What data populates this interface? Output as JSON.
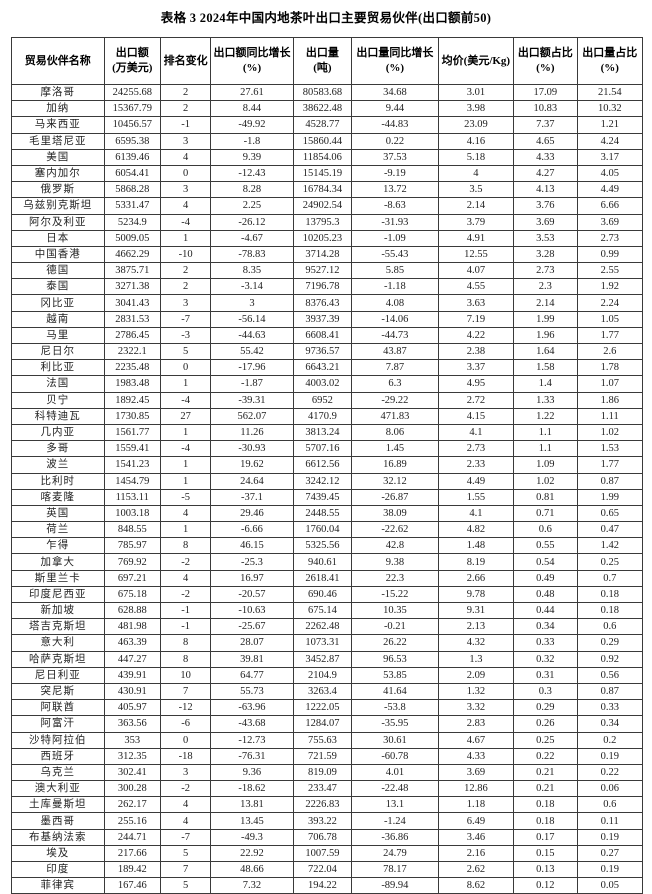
{
  "title": "表格 3 2024年中国内地茶叶出口主要贸易伙伴(出口额前50)",
  "colors": {
    "background": "#ffffff",
    "text": "#1c1c1c",
    "border": "#3a3a3a"
  },
  "table": {
    "columns": [
      "贸易伙伴名称",
      "出口额\n(万美元)",
      "排名变化",
      "出口额同比增长\n(%)",
      "出口量\n(吨)",
      "出口量同比增长\n(%)",
      "均价(美元/Kg)",
      "出口额占比\n(%)",
      "出口量占比\n(%)"
    ],
    "rows": [
      [
        "摩洛哥",
        "24255.68",
        "2",
        "27.61",
        "80583.68",
        "34.68",
        "3.01",
        "17.09",
        "21.54"
      ],
      [
        "加纳",
        "15367.79",
        "2",
        "8.44",
        "38622.48",
        "9.44",
        "3.98",
        "10.83",
        "10.32"
      ],
      [
        "马来西亚",
        "10456.57",
        "-1",
        "-49.92",
        "4528.77",
        "-44.83",
        "23.09",
        "7.37",
        "1.21"
      ],
      [
        "毛里塔尼亚",
        "6595.38",
        "3",
        "-1.8",
        "15860.44",
        "0.22",
        "4.16",
        "4.65",
        "4.24"
      ],
      [
        "美国",
        "6139.46",
        "4",
        "9.39",
        "11854.06",
        "37.53",
        "5.18",
        "4.33",
        "3.17"
      ],
      [
        "塞内加尔",
        "6054.41",
        "0",
        "-12.43",
        "15145.19",
        "-9.19",
        "4",
        "4.27",
        "4.05"
      ],
      [
        "俄罗斯",
        "5868.28",
        "3",
        "8.28",
        "16784.34",
        "13.72",
        "3.5",
        "4.13",
        "4.49"
      ],
      [
        "乌兹别克斯坦",
        "5331.47",
        "4",
        "2.25",
        "24902.54",
        "-8.63",
        "2.14",
        "3.76",
        "6.66"
      ],
      [
        "阿尔及利亚",
        "5234.9",
        "-4",
        "-26.12",
        "13795.3",
        "-31.93",
        "3.79",
        "3.69",
        "3.69"
      ],
      [
        "日本",
        "5009.05",
        "1",
        "-4.67",
        "10205.23",
        "-1.09",
        "4.91",
        "3.53",
        "2.73"
      ],
      [
        "中国香港",
        "4662.29",
        "-10",
        "-78.83",
        "3714.28",
        "-55.43",
        "12.55",
        "3.28",
        "0.99"
      ],
      [
        "德国",
        "3875.71",
        "2",
        "8.35",
        "9527.12",
        "5.85",
        "4.07",
        "2.73",
        "2.55"
      ],
      [
        "泰国",
        "3271.38",
        "2",
        "-3.14",
        "7196.78",
        "-1.18",
        "4.55",
        "2.3",
        "1.92"
      ],
      [
        "冈比亚",
        "3041.43",
        "3",
        "3",
        "8376.43",
        "4.08",
        "3.63",
        "2.14",
        "2.24"
      ],
      [
        "越南",
        "2831.53",
        "-7",
        "-56.14",
        "3937.39",
        "-14.06",
        "7.19",
        "1.99",
        "1.05"
      ],
      [
        "马里",
        "2786.45",
        "-3",
        "-44.63",
        "6608.41",
        "-44.73",
        "4.22",
        "1.96",
        "1.77"
      ],
      [
        "尼日尔",
        "2322.1",
        "5",
        "55.42",
        "9736.57",
        "43.87",
        "2.38",
        "1.64",
        "2.6"
      ],
      [
        "利比亚",
        "2235.48",
        "0",
        "-17.96",
        "6643.21",
        "7.87",
        "3.37",
        "1.58",
        "1.78"
      ],
      [
        "法国",
        "1983.48",
        "1",
        "-1.87",
        "4003.02",
        "6.3",
        "4.95",
        "1.4",
        "1.07"
      ],
      [
        "贝宁",
        "1892.45",
        "-4",
        "-39.31",
        "6952",
        "-29.22",
        "2.72",
        "1.33",
        "1.86"
      ],
      [
        "科特迪瓦",
        "1730.85",
        "27",
        "562.07",
        "4170.9",
        "471.83",
        "4.15",
        "1.22",
        "1.11"
      ],
      [
        "几内亚",
        "1561.77",
        "1",
        "11.26",
        "3813.24",
        "8.06",
        "4.1",
        "1.1",
        "1.02"
      ],
      [
        "多哥",
        "1559.41",
        "-4",
        "-30.93",
        "5707.16",
        "1.45",
        "2.73",
        "1.1",
        "1.53"
      ],
      [
        "波兰",
        "1541.23",
        "1",
        "19.62",
        "6612.56",
        "16.89",
        "2.33",
        "1.09",
        "1.77"
      ],
      [
        "比利时",
        "1454.79",
        "1",
        "24.64",
        "3242.12",
        "32.12",
        "4.49",
        "1.02",
        "0.87"
      ],
      [
        "喀麦隆",
        "1153.11",
        "-5",
        "-37.1",
        "7439.45",
        "-26.87",
        "1.55",
        "0.81",
        "1.99"
      ],
      [
        "英国",
        "1003.18",
        "4",
        "29.46",
        "2448.55",
        "38.09",
        "4.1",
        "0.71",
        "0.65"
      ],
      [
        "荷兰",
        "848.55",
        "1",
        "-6.66",
        "1760.04",
        "-22.62",
        "4.82",
        "0.6",
        "0.47"
      ],
      [
        "乍得",
        "785.97",
        "8",
        "46.15",
        "5325.56",
        "42.8",
        "1.48",
        "0.55",
        "1.42"
      ],
      [
        "加拿大",
        "769.92",
        "-2",
        "-25.3",
        "940.61",
        "9.38",
        "8.19",
        "0.54",
        "0.25"
      ],
      [
        "斯里兰卡",
        "697.21",
        "4",
        "16.97",
        "2618.41",
        "22.3",
        "2.66",
        "0.49",
        "0.7"
      ],
      [
        "印度尼西亚",
        "675.18",
        "-2",
        "-20.57",
        "690.46",
        "-15.22",
        "9.78",
        "0.48",
        "0.18"
      ],
      [
        "新加坡",
        "628.88",
        "-1",
        "-10.63",
        "675.14",
        "10.35",
        "9.31",
        "0.44",
        "0.18"
      ],
      [
        "塔吉克斯坦",
        "481.98",
        "-1",
        "-25.67",
        "2262.48",
        "-0.21",
        "2.13",
        "0.34",
        "0.6"
      ],
      [
        "意大利",
        "463.39",
        "8",
        "28.07",
        "1073.31",
        "26.22",
        "4.32",
        "0.33",
        "0.29"
      ],
      [
        "哈萨克斯坦",
        "447.27",
        "8",
        "39.81",
        "3452.87",
        "96.53",
        "1.3",
        "0.32",
        "0.92"
      ],
      [
        "尼日利亚",
        "439.91",
        "10",
        "64.77",
        "2104.9",
        "53.85",
        "2.09",
        "0.31",
        "0.56"
      ],
      [
        "突尼斯",
        "430.91",
        "7",
        "55.73",
        "3263.4",
        "41.64",
        "1.32",
        "0.3",
        "0.87"
      ],
      [
        "阿联酋",
        "405.97",
        "-12",
        "-63.96",
        "1222.05",
        "-53.8",
        "3.32",
        "0.29",
        "0.33"
      ],
      [
        "阿富汗",
        "363.56",
        "-6",
        "-43.68",
        "1284.07",
        "-35.95",
        "2.83",
        "0.26",
        "0.34"
      ],
      [
        "沙特阿拉伯",
        "353",
        "0",
        "-12.73",
        "755.63",
        "30.61",
        "4.67",
        "0.25",
        "0.2"
      ],
      [
        "西班牙",
        "312.35",
        "-18",
        "-76.31",
        "721.59",
        "-60.78",
        "4.33",
        "0.22",
        "0.19"
      ],
      [
        "乌克兰",
        "302.41",
        "3",
        "9.36",
        "819.09",
        "4.01",
        "3.69",
        "0.21",
        "0.22"
      ],
      [
        "澳大利亚",
        "300.28",
        "-2",
        "-18.62",
        "233.47",
        "-22.48",
        "12.86",
        "0.21",
        "0.06"
      ],
      [
        "土库曼斯坦",
        "262.17",
        "4",
        "13.81",
        "2226.83",
        "13.1",
        "1.18",
        "0.18",
        "0.6"
      ],
      [
        "墨西哥",
        "255.16",
        "4",
        "13.45",
        "393.22",
        "-1.24",
        "6.49",
        "0.18",
        "0.11"
      ],
      [
        "布基纳法索",
        "244.71",
        "-7",
        "-49.3",
        "706.78",
        "-36.86",
        "3.46",
        "0.17",
        "0.19"
      ],
      [
        "埃及",
        "217.66",
        "5",
        "22.92",
        "1007.59",
        "24.79",
        "2.16",
        "0.15",
        "0.27"
      ],
      [
        "印度",
        "189.42",
        "7",
        "48.66",
        "722.04",
        "78.17",
        "2.62",
        "0.13",
        "0.19"
      ],
      [
        "菲律宾",
        "167.46",
        "5",
        "7.32",
        "194.22",
        "-89.94",
        "8.62",
        "0.12",
        "0.05"
      ]
    ]
  }
}
